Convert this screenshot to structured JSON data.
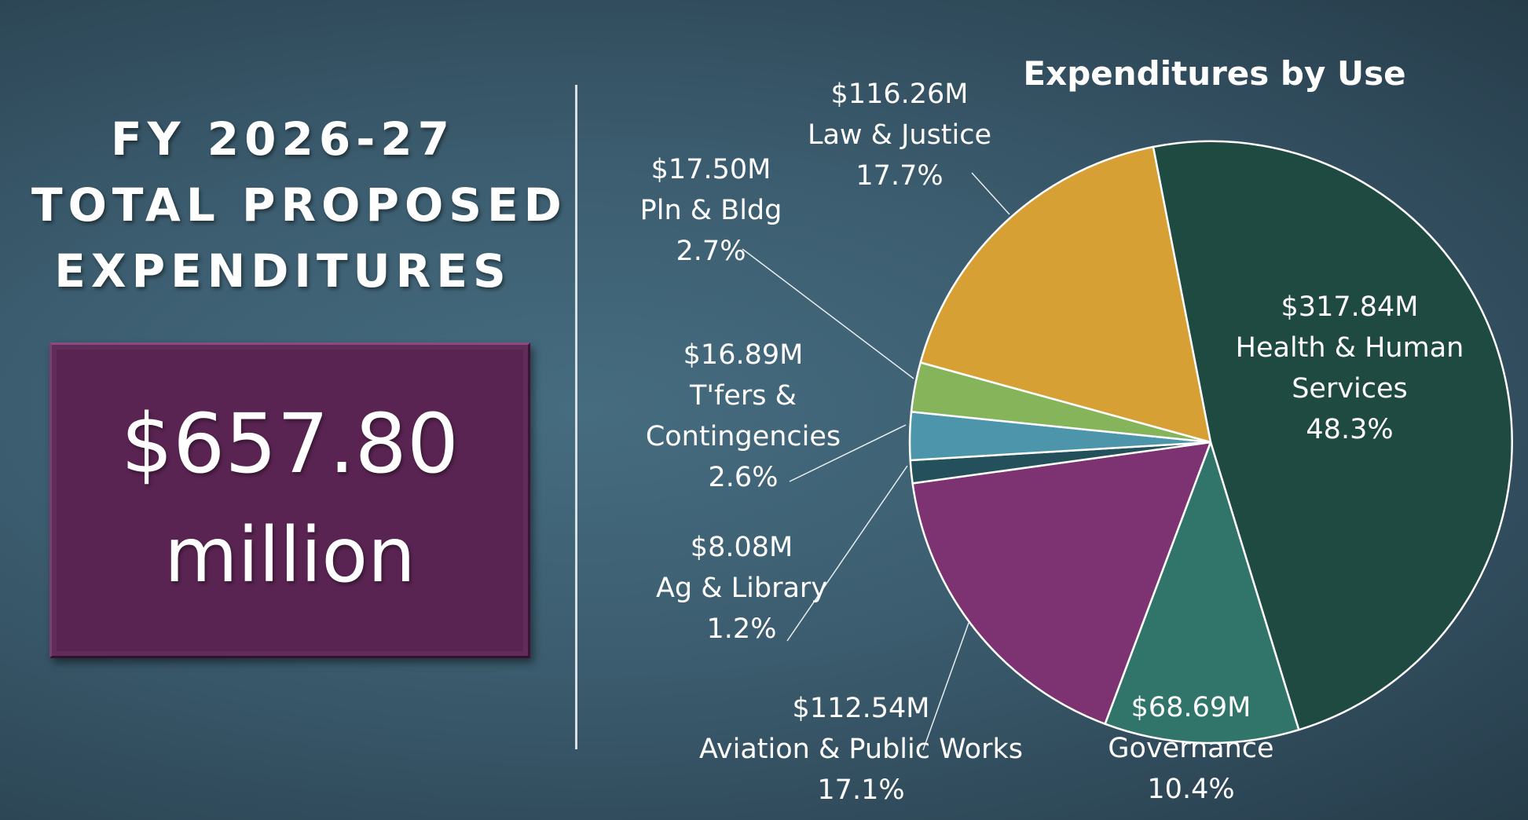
{
  "headline": {
    "line1": "FY 2026-27",
    "line2": "TOTAL PROPOSED",
    "line3": "EXPENDITURES"
  },
  "total": {
    "amount": "$657.80",
    "unit": "million"
  },
  "colors": {
    "background": "#3b5c6e",
    "total_box": "#5a2452"
  },
  "chart_data": {
    "type": "pie",
    "title": "Expenditures by Use",
    "slices": [
      {
        "label": "Health & Human Services",
        "amount_label": "$317.84M",
        "percent_label": "48.3%",
        "value": 317.84,
        "percent": 48.3,
        "color": "#1f4a41"
      },
      {
        "label": "Governance",
        "amount_label": "$68.69M",
        "percent_label": "10.4%",
        "value": 68.69,
        "percent": 10.4,
        "color": "#31756a"
      },
      {
        "label": "Aviation & Public Works",
        "amount_label": "$112.54M",
        "percent_label": "17.1%",
        "value": 112.54,
        "percent": 17.1,
        "color": "#7d3372"
      },
      {
        "label": "Ag & Library",
        "amount_label": "$8.08M",
        "percent_label": "1.2%",
        "value": 8.08,
        "percent": 1.2,
        "color": "#23505a"
      },
      {
        "label": "T'fers & Contingencies",
        "amount_label": "$16.89M",
        "percent_label": "2.6%",
        "value": 16.89,
        "percent": 2.6,
        "color": "#4c95ab"
      },
      {
        "label": "Pln & Bldg",
        "amount_label": "$17.50M",
        "percent_label": "2.7%",
        "value": 17.5,
        "percent": 2.7,
        "color": "#86b45a"
      },
      {
        "label": "Law & Justice",
        "amount_label": "$116.26M",
        "percent_label": "17.7%",
        "value": 116.26,
        "percent": 17.7,
        "color": "#d7a035"
      }
    ]
  }
}
